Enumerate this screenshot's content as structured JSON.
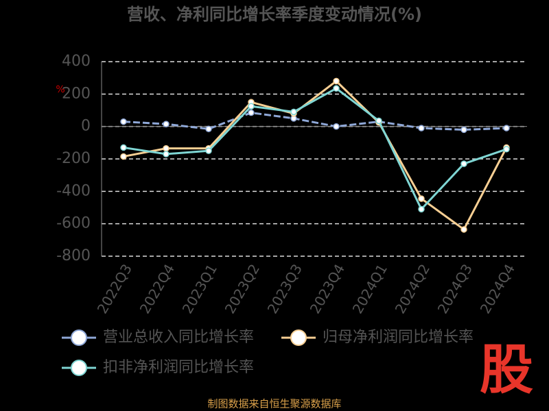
{
  "chart_data": {
    "type": "line",
    "title": "营收、净利同比增长率季度变动情况(%)",
    "y_label": "%",
    "categories": [
      "2022Q3",
      "2022Q4",
      "2023Q1",
      "2023Q2",
      "2023Q3",
      "2023Q4",
      "2024Q1",
      "2024Q2",
      "2024Q3",
      "2024Q4"
    ],
    "series": [
      {
        "name": "营业总收入同比增长率",
        "color": "#8fa8d8",
        "values": [
          30,
          15,
          -15,
          85,
          50,
          0,
          30,
          -10,
          -20,
          -10
        ]
      },
      {
        "name": "归母净利润同比增长率",
        "color": "#f8cf93",
        "values": [
          -185,
          -135,
          -135,
          150,
          80,
          280,
          25,
          -445,
          -635,
          -130
        ]
      },
      {
        "name": "扣非净利润同比增长率",
        "color": "#7fd6d4",
        "values": [
          -130,
          -170,
          -150,
          125,
          90,
          235,
          35,
          -510,
          -230,
          -140
        ]
      }
    ],
    "ylim": [
      -800,
      400
    ],
    "yticks": [
      -800,
      -600,
      -400,
      -200,
      0,
      200,
      400
    ],
    "grid": true,
    "footer": "制图数据来自恒生聚源数据库",
    "logo": "股"
  }
}
